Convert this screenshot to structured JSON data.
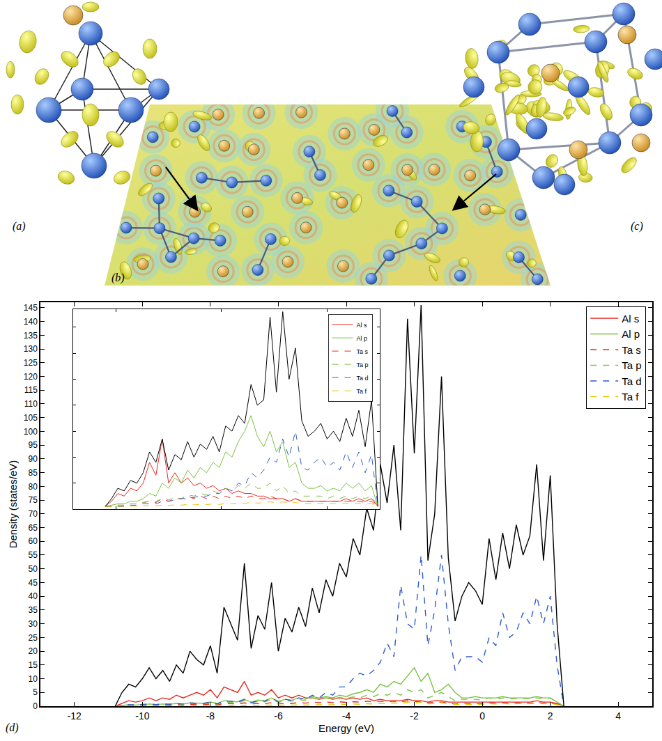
{
  "panel_labels": {
    "a": "(a)",
    "b": "(b)",
    "c": "(c)",
    "d": "(d)"
  },
  "chart_data": [
    {
      "type": "line",
      "x_label": "Energy (eV)",
      "y_label": "Density (states/eV)",
      "xlim": [
        -13,
        5
      ],
      "ylim": [
        0,
        147
      ],
      "xticks": [
        -12,
        -10,
        -8,
        -6,
        -4,
        -2,
        0,
        2,
        4
      ],
      "yticks": [
        0,
        5,
        10,
        15,
        20,
        25,
        30,
        35,
        40,
        45,
        50,
        55,
        60,
        65,
        70,
        75,
        80,
        85,
        90,
        95,
        100,
        105,
        110,
        115,
        120,
        125,
        130,
        135,
        140,
        145
      ],
      "legend": "top right",
      "x": [
        -10.8,
        -10.6,
        -10.4,
        -10.2,
        -10,
        -9.8,
        -9.6,
        -9.4,
        -9.2,
        -9,
        -8.8,
        -8.6,
        -8.4,
        -8.2,
        -8,
        -7.8,
        -7.6,
        -7.4,
        -7.2,
        -7,
        -6.8,
        -6.6,
        -6.4,
        -6.2,
        -6,
        -5.8,
        -5.6,
        -5.4,
        -5.2,
        -5,
        -4.8,
        -4.6,
        -4.4,
        -4.2,
        -4,
        -3.8,
        -3.6,
        -3.4,
        -3.2,
        -3,
        -2.8,
        -2.6,
        -2.4,
        -2.2,
        -2,
        -1.8,
        -1.6,
        -1.4,
        -1.2,
        -1,
        -0.8,
        -0.6,
        -0.4,
        -0.2,
        0,
        0.2,
        0.4,
        0.6,
        0.8,
        1,
        1.2,
        1.4,
        1.6,
        1.8,
        2,
        2.2,
        2.4
      ],
      "series": [
        {
          "name": "Al s",
          "color": "#e8261e",
          "line_style": "solid",
          "values": [
            0,
            1,
            2,
            1.5,
            2,
            3,
            2,
            3,
            2.5,
            4,
            3,
            4,
            5,
            4,
            6,
            3,
            7,
            6,
            5,
            9,
            4,
            5,
            4,
            6,
            3,
            4,
            3,
            4,
            3,
            3,
            2.5,
            3,
            2.5,
            3,
            2.5,
            3,
            2.5,
            3,
            2,
            2.5,
            2,
            2,
            2,
            2.5,
            2,
            2,
            1.5,
            2,
            2,
            1.5,
            1.5,
            1.5,
            1.5,
            1.5,
            1.5,
            1.5,
            1.5,
            1.5,
            1.5,
            1.5,
            1.5,
            1.5,
            2,
            1.5,
            1.5,
            1,
            0
          ]
        },
        {
          "name": "Al p",
          "color": "#7cc242",
          "line_style": "solid",
          "values": [
            0,
            0.3,
            0.5,
            0.4,
            0.6,
            0.8,
            0.6,
            0.8,
            0.7,
            1,
            0.8,
            1.2,
            1.1,
            1,
            1.5,
            1,
            2,
            1.8,
            1.6,
            2.5,
            1.5,
            2.2,
            2,
            3,
            1.8,
            2.5,
            2.2,
            3,
            2.5,
            3.5,
            3,
            3.5,
            3,
            4,
            3.5,
            4.5,
            5,
            6,
            5,
            8,
            7,
            9,
            8,
            11,
            14,
            9,
            12,
            5,
            6,
            8,
            5,
            3,
            3,
            3.5,
            3,
            3,
            3,
            3.5,
            3,
            3,
            3,
            3,
            3.5,
            3,
            3,
            1.5,
            0
          ]
        },
        {
          "name": "Ta s",
          "color": "#e8261e",
          "line_style": "dashed",
          "values": [
            0,
            0.2,
            0.3,
            0.3,
            0.4,
            0.5,
            0.4,
            0.5,
            0.4,
            0.6,
            0.5,
            0.7,
            0.6,
            0.6,
            0.8,
            0.5,
            1,
            0.9,
            0.8,
            1.2,
            0.8,
            1,
            0.9,
            1.3,
            0.8,
            1.1,
            1,
            1.3,
            1.1,
            1.5,
            1.3,
            1.5,
            1.3,
            1.6,
            1.4,
            1.6,
            1.5,
            1.8,
            1.5,
            1.8,
            1.6,
            1.8,
            1.5,
            2,
            1.6,
            1.8,
            1.2,
            1.4,
            1.5,
            1.2,
            0.8,
            1,
            1,
            1,
            0.9,
            1.2,
            1,
            1.3,
            1.1,
            1.2,
            1.2,
            1.1,
            1.4,
            1.1,
            1.3,
            0.6,
            0
          ]
        },
        {
          "name": "Ta p",
          "color": "#7cc242",
          "line_style": "dashed",
          "values": [
            0,
            0.2,
            0.4,
            0.3,
            0.5,
            0.6,
            0.5,
            0.7,
            0.6,
            0.9,
            0.7,
            1,
            0.9,
            0.8,
            1.2,
            0.7,
            1.6,
            1.4,
            1.2,
            2,
            1.2,
            1.8,
            1.6,
            2.5,
            1.4,
            2,
            1.8,
            2.5,
            2,
            3,
            2.5,
            3,
            2.6,
            3.2,
            2.8,
            3.4,
            3,
            4,
            3.5,
            4.5,
            4,
            5,
            4,
            6,
            5,
            6,
            3,
            4,
            5,
            3.5,
            2,
            2.5,
            2.5,
            2.5,
            2.2,
            3,
            2.5,
            3,
            2.6,
            2.8,
            2.8,
            2.8,
            3,
            2.6,
            3,
            1.4,
            0
          ]
        },
        {
          "name": "Ta d",
          "color": "#2f5bd0",
          "line_style": "dashed",
          "values": [
            0,
            0.3,
            0.5,
            0.5,
            0.6,
            0.8,
            0.6,
            0.8,
            0.7,
            1,
            0.8,
            1.2,
            1,
            1,
            1.5,
            0.8,
            2,
            1.8,
            1.5,
            2.5,
            1.2,
            2,
            1.8,
            3,
            1.5,
            2.5,
            2,
            3,
            2.5,
            4,
            3,
            5,
            4,
            7,
            7,
            10,
            12,
            11,
            13,
            16,
            23,
            18,
            44,
            30,
            28,
            55,
            22,
            35,
            55,
            30,
            13,
            18,
            18,
            18,
            16,
            25,
            22,
            34,
            25,
            27,
            34,
            30,
            40,
            30,
            40,
            15,
            0
          ]
        },
        {
          "name": "Ta f",
          "color": "#e6c700",
          "line_style": "dashed",
          "values": [
            0,
            0.1,
            0.1,
            0.1,
            0.1,
            0.2,
            0.1,
            0.2,
            0.1,
            0.2,
            0.2,
            0.2,
            0.2,
            0.2,
            0.3,
            0.2,
            0.3,
            0.3,
            0.3,
            0.4,
            0.3,
            0.4,
            0.3,
            0.4,
            0.3,
            0.4,
            0.4,
            0.5,
            0.4,
            0.5,
            0.5,
            0.6,
            0.5,
            0.7,
            0.6,
            0.8,
            0.7,
            0.9,
            0.8,
            1,
            1,
            1.2,
            1,
            1.5,
            1.2,
            1.5,
            0.8,
            1,
            1.3,
            0.9,
            0.6,
            0.7,
            0.7,
            0.7,
            0.6,
            0.9,
            0.8,
            1,
            0.8,
            0.9,
            1,
            0.9,
            1.1,
            0.9,
            1.1,
            0.5,
            0
          ]
        },
        {
          "color": "#000000",
          "line_style": "solid",
          "values": [
            0,
            5,
            8,
            7,
            10,
            14,
            10,
            13,
            9,
            15,
            12,
            20,
            17,
            15,
            22,
            12,
            36,
            30,
            24,
            52,
            21,
            33,
            28,
            45,
            20,
            32,
            27,
            36,
            29,
            43,
            34,
            46,
            40,
            52,
            47,
            61,
            55,
            72,
            64,
            88,
            74,
            95,
            64,
            141,
            92,
            146,
            53,
            70,
            120,
            54,
            31,
            40,
            45,
            42,
            37,
            61,
            46,
            63,
            50,
            66,
            55,
            62,
            88,
            53,
            84,
            30,
            0
          ]
        }
      ]
    },
    {
      "type": "line",
      "xlim": [
        -12,
        2.5
      ],
      "ylim": [
        70,
        147
      ],
      "tick_labels": false,
      "legend": "top right",
      "x": [
        -10.5,
        -10.2,
        -9.9,
        -9.6,
        -9.3,
        -9,
        -8.7,
        -8.4,
        -8.1,
        -7.8,
        -7.5,
        -7.2,
        -6.9,
        -6.6,
        -6.3,
        -6,
        -5.7,
        -5.4,
        -5.1,
        -4.8,
        -4.5,
        -4.2,
        -3.9,
        -3.6,
        -3.3,
        -3,
        -2.7,
        -2.4,
        -2.1,
        -1.8,
        -1.5,
        -1.2,
        -0.9,
        -0.6,
        -0.3,
        0,
        0.3,
        0.6,
        0.9,
        1.2,
        1.5,
        1.8,
        2.1,
        2.4
      ],
      "series": [
        {
          "name": "Al s",
          "color": "#e8261e",
          "line_style": "solid",
          "values": [
            71,
            73,
            76,
            75,
            78,
            77,
            80,
            88,
            83,
            97,
            80,
            84,
            80,
            82,
            79,
            80,
            78,
            79,
            77,
            78,
            76,
            77,
            76,
            76,
            75,
            75,
            74,
            74,
            74,
            73,
            74,
            73,
            73,
            73,
            73,
            73,
            73,
            73,
            74,
            73,
            74,
            73,
            74,
            71
          ]
        },
        {
          "name": "Al p",
          "color": "#7cc242",
          "line_style": "solid",
          "values": [
            71,
            71.5,
            72,
            72,
            73,
            73,
            74,
            76,
            75,
            80,
            78,
            82,
            80,
            85,
            82,
            86,
            84,
            88,
            86,
            92,
            90,
            96,
            100,
            106,
            98,
            94,
            100,
            92,
            96,
            86,
            88,
            80,
            78,
            78,
            79,
            77,
            78,
            77,
            80,
            78,
            80,
            77,
            79,
            71
          ]
        },
        {
          "name": "Ta s",
          "color": "#e8261e",
          "line_style": "dashed",
          "values": [
            71,
            71,
            71.5,
            71.5,
            72,
            72,
            72.5,
            73,
            72.5,
            74,
            73,
            74,
            74,
            75,
            74,
            75,
            74,
            75,
            74,
            75,
            74,
            75,
            74,
            75,
            74,
            74,
            75,
            74,
            74,
            73,
            74,
            73,
            73,
            73,
            73,
            73,
            73,
            73,
            73,
            73,
            73,
            72.5,
            73,
            71
          ]
        },
        {
          "name": "Ta p",
          "color": "#7cc242",
          "line_style": "dashed",
          "values": [
            71,
            71,
            71.5,
            71.5,
            72,
            72,
            72.5,
            73,
            73,
            74,
            73.5,
            74.5,
            74,
            75.5,
            75,
            76,
            75.5,
            77,
            76,
            78,
            77,
            79,
            78,
            80,
            78,
            78,
            80,
            77,
            79,
            76,
            77,
            75,
            75,
            75,
            75,
            74,
            75,
            74,
            75,
            74,
            75,
            74,
            75,
            71
          ]
        },
        {
          "name": "Ta d",
          "color": "#2f5bd0",
          "line_style": "dashed",
          "values": [
            71,
            71,
            71,
            71,
            71.5,
            71.5,
            72,
            72,
            72,
            73,
            73,
            73.5,
            74,
            74,
            74.5,
            75,
            75,
            76,
            76,
            78,
            77,
            80,
            79,
            84,
            82,
            85,
            90,
            88,
            97,
            90,
            100,
            86,
            85,
            88,
            90,
            86,
            88,
            85,
            92,
            86,
            92,
            84,
            91,
            71
          ]
        },
        {
          "name": "Ta f",
          "color": "#e6c700",
          "line_style": "dashed",
          "values": [
            71,
            71,
            71,
            71,
            71,
            71,
            71.2,
            71.3,
            71.2,
            71.5,
            71.4,
            71.6,
            71.5,
            71.8,
            71.6,
            71.8,
            71.7,
            72,
            71.8,
            72.1,
            72,
            72.3,
            72.2,
            72.6,
            72.3,
            72.4,
            72.8,
            72.4,
            72.8,
            72.3,
            72.5,
            72.1,
            72,
            72.1,
            72.2,
            72,
            72.1,
            72,
            72.2,
            72,
            72.2,
            72,
            72.1,
            71
          ]
        },
        {
          "color": "#000000",
          "line_style": "solid",
          "values": [
            71,
            74,
            78,
            77,
            81,
            80,
            84,
            92,
            88,
            97,
            85,
            91,
            89,
            96,
            90,
            95,
            93,
            98,
            92,
            102,
            100,
            106,
            103,
            118,
            110,
            112,
            144,
            115,
            146,
            120,
            132,
            104,
            98,
            100,
            103,
            97,
            100,
            96,
            105,
            98,
            108,
            94,
            112,
            71
          ]
        }
      ]
    }
  ]
}
